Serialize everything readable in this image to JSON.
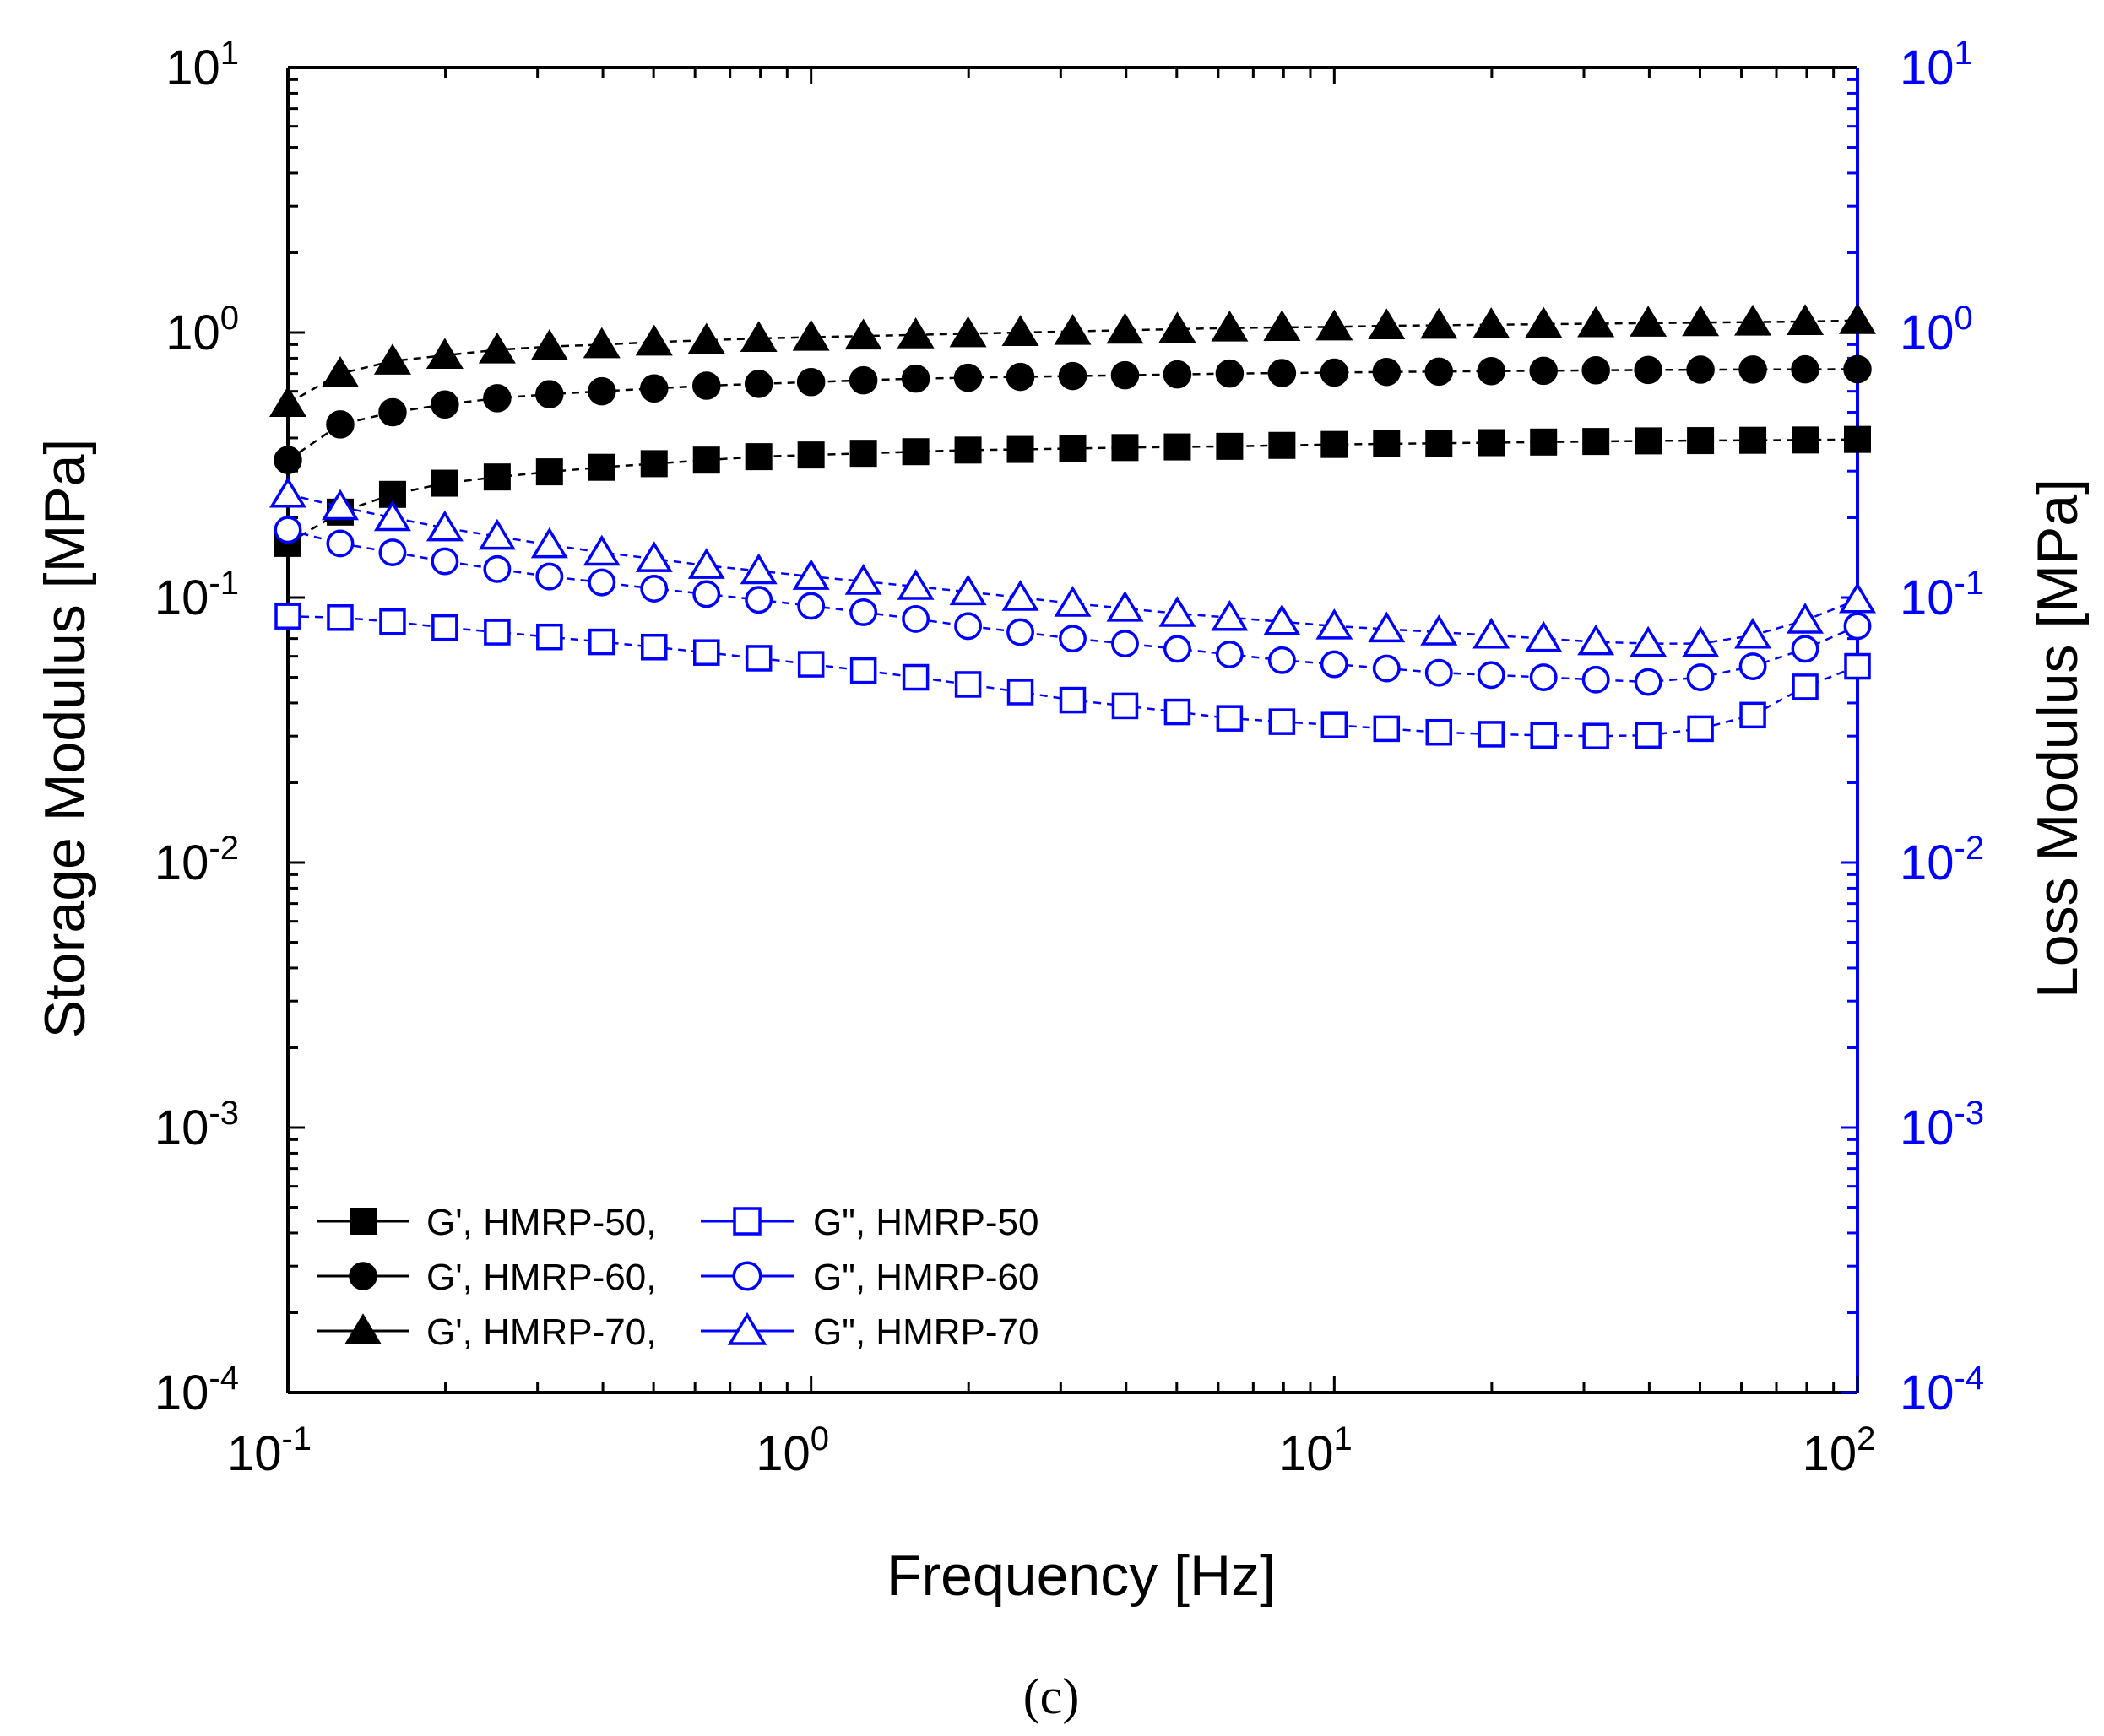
{
  "chart_data": {
    "type": "scatter",
    "subtype": "dual-axis log-log line with markers",
    "caption": "(c)",
    "xlabel": "Frequency [Hz]",
    "ylabel": "Storage Modulus [MPa]",
    "ylabel_right": "Loss Modulus [MPa]",
    "xscale": "log",
    "yscale": "log",
    "xlim": [
      0.1,
      100
    ],
    "ylim": [
      0.0001,
      10
    ],
    "ylim_right": [
      0.0001,
      10
    ],
    "x_ticks": [
      {
        "value": 0.1,
        "base": "10",
        "exp": "-1"
      },
      {
        "value": 1,
        "base": "10",
        "exp": "0"
      },
      {
        "value": 10,
        "base": "10",
        "exp": "1"
      },
      {
        "value": 100,
        "base": "10",
        "exp": "2"
      }
    ],
    "y_ticks": [
      {
        "value": 0.0001,
        "base": "10",
        "exp": "-4"
      },
      {
        "value": 0.001,
        "base": "10",
        "exp": "-3"
      },
      {
        "value": 0.01,
        "base": "10",
        "exp": "-2"
      },
      {
        "value": 0.1,
        "base": "10",
        "exp": "-1"
      },
      {
        "value": 1,
        "base": "10",
        "exp": "0"
      },
      {
        "value": 10,
        "base": "10",
        "exp": "1"
      }
    ],
    "colors": {
      "left_axis": "#000000",
      "right_axis": "#0000ff"
    },
    "x": [
      0.1,
      0.1259,
      0.1585,
      0.1995,
      0.2512,
      0.3162,
      0.3981,
      0.5012,
      0.631,
      0.7943,
      1.0,
      1.2589,
      1.5849,
      1.9953,
      2.5119,
      3.1623,
      3.9811,
      5.0119,
      6.3096,
      7.9433,
      10.0,
      12.589,
      15.849,
      19.953,
      25.119,
      31.623,
      39.811,
      50.119,
      63.096,
      79.433,
      100.0
    ],
    "series": [
      {
        "name": "G', HMRP-50,",
        "axis": "left",
        "color": "#000000",
        "marker": "square",
        "filled": true,
        "values": [
          0.16,
          0.21,
          0.245,
          0.27,
          0.285,
          0.298,
          0.31,
          0.32,
          0.33,
          0.34,
          0.345,
          0.35,
          0.355,
          0.36,
          0.362,
          0.365,
          0.368,
          0.37,
          0.372,
          0.375,
          0.378,
          0.38,
          0.382,
          0.384,
          0.386,
          0.388,
          0.39,
          0.391,
          0.392,
          0.393,
          0.395
        ]
      },
      {
        "name": "G', HMRP-60,",
        "axis": "left",
        "color": "#000000",
        "marker": "circle",
        "filled": true,
        "values": [
          0.33,
          0.45,
          0.5,
          0.535,
          0.565,
          0.585,
          0.6,
          0.615,
          0.63,
          0.64,
          0.65,
          0.66,
          0.67,
          0.675,
          0.68,
          0.685,
          0.69,
          0.695,
          0.7,
          0.703,
          0.706,
          0.71,
          0.712,
          0.715,
          0.717,
          0.72,
          0.722,
          0.724,
          0.725,
          0.726,
          0.727
        ]
      },
      {
        "name": "G', HMRP-70,",
        "axis": "left",
        "color": "#000000",
        "marker": "triangle",
        "filled": true,
        "values": [
          0.54,
          0.7,
          0.78,
          0.82,
          0.86,
          0.885,
          0.9,
          0.92,
          0.935,
          0.95,
          0.96,
          0.97,
          0.98,
          0.99,
          1.0,
          1.01,
          1.02,
          1.03,
          1.04,
          1.045,
          1.05,
          1.06,
          1.065,
          1.07,
          1.075,
          1.08,
          1.085,
          1.09,
          1.095,
          1.1,
          1.11
        ]
      },
      {
        "name": "G\", HMRP-50",
        "axis": "right",
        "color": "#0000ff",
        "marker": "square",
        "filled": false,
        "values": [
          0.085,
          0.084,
          0.081,
          0.077,
          0.074,
          0.071,
          0.068,
          0.065,
          0.062,
          0.059,
          0.056,
          0.053,
          0.05,
          0.047,
          0.044,
          0.041,
          0.039,
          0.037,
          0.035,
          0.034,
          0.033,
          0.032,
          0.031,
          0.0305,
          0.0302,
          0.03,
          0.0302,
          0.032,
          0.036,
          0.046,
          0.055
        ]
      },
      {
        "name": "G\", HMRP-60",
        "axis": "right",
        "color": "#0000ff",
        "marker": "circle",
        "filled": false,
        "values": [
          0.18,
          0.16,
          0.148,
          0.137,
          0.128,
          0.12,
          0.114,
          0.108,
          0.103,
          0.098,
          0.093,
          0.088,
          0.083,
          0.078,
          0.074,
          0.07,
          0.067,
          0.064,
          0.061,
          0.058,
          0.056,
          0.054,
          0.052,
          0.051,
          0.05,
          0.049,
          0.048,
          0.05,
          0.055,
          0.064,
          0.078
        ]
      },
      {
        "name": "G\", HMRP-70",
        "axis": "right",
        "color": "#0000ff",
        "marker": "triangle",
        "filled": false,
        "values": [
          0.245,
          0.22,
          0.2,
          0.183,
          0.17,
          0.158,
          0.148,
          0.14,
          0.132,
          0.126,
          0.12,
          0.115,
          0.11,
          0.105,
          0.1,
          0.095,
          0.091,
          0.087,
          0.084,
          0.081,
          0.078,
          0.076,
          0.074,
          0.072,
          0.07,
          0.068,
          0.067,
          0.067,
          0.072,
          0.082,
          0.098
        ]
      }
    ],
    "legend": {
      "placement": "bottom-left",
      "rows": [
        {
          "left": "G', HMRP-50,",
          "right": "G\", HMRP-50"
        },
        {
          "left": "G', HMRP-60,",
          "right": "G\", HMRP-60"
        },
        {
          "left": "G', HMRP-70,",
          "right": "G\", HMRP-70"
        }
      ]
    }
  }
}
